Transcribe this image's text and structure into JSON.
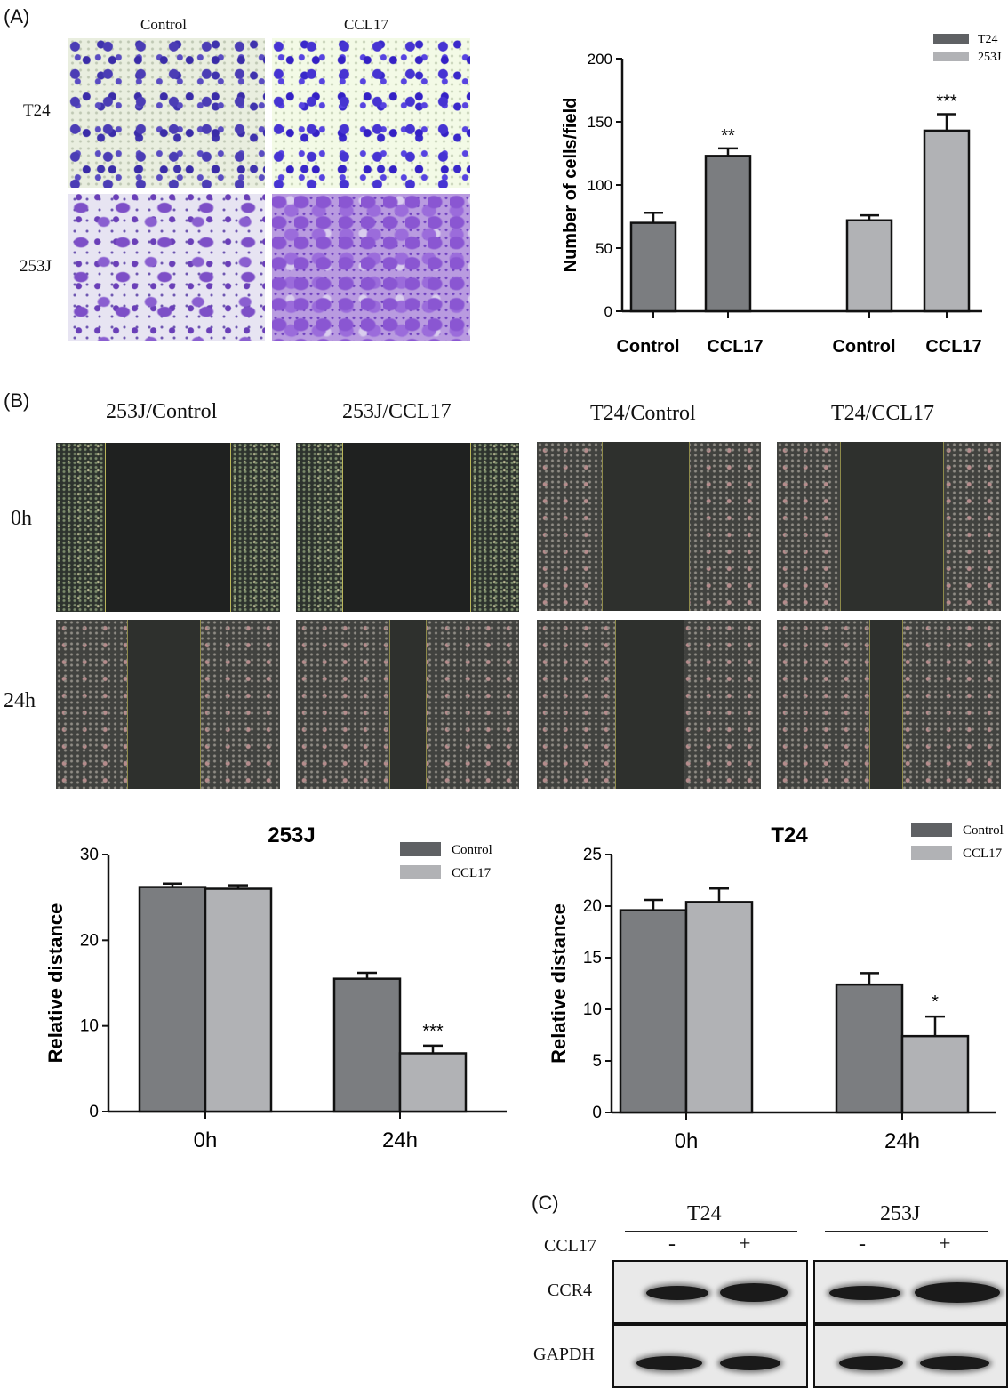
{
  "panel_labels": {
    "a": "(A)",
    "b": "(B)",
    "c": "(C)"
  },
  "panel_a": {
    "col_labels": [
      "Control",
      "CCL17"
    ],
    "row_labels": [
      "T24",
      "253J"
    ]
  },
  "panel_b": {
    "col_labels": [
      "253J/Control",
      "253J/CCL17",
      "T24/Control",
      "T24/CCL17"
    ],
    "row_labels": [
      "0h",
      "24h"
    ]
  },
  "panel_c": {
    "group_labels": [
      "T24",
      "253J"
    ],
    "treatment_label": "CCL17",
    "treatment_signs": [
      "-",
      "+",
      "-",
      "+"
    ],
    "row_labels": [
      "CCR4",
      "GAPDH"
    ]
  },
  "colors": {
    "series_dark": "#7b7d80",
    "series_light": "#b1b2b5",
    "legend_dark": "#5f6164"
  },
  "chart_data": [
    {
      "id": "transwell",
      "type": "bar",
      "title": "",
      "ylabel": "Number of cells/field",
      "ylim": [
        0,
        200
      ],
      "yticks": [
        0,
        50,
        100,
        150,
        200
      ],
      "categories": [
        "Control",
        "CCL17",
        "Control",
        "CCL17"
      ],
      "groups": [
        "T24",
        "T24",
        "253J",
        "253J"
      ],
      "values": [
        70,
        123,
        72,
        143
      ],
      "errors": [
        8,
        6,
        4,
        13
      ],
      "significance": [
        "",
        "**",
        "",
        "***"
      ],
      "legend": [
        "T24",
        "253J"
      ],
      "legend_position": "top-right",
      "grid": false
    },
    {
      "id": "migration-253j",
      "type": "bar",
      "title": "253J",
      "ylabel": "Relative distance",
      "ylim": [
        0,
        30
      ],
      "yticks": [
        0,
        10,
        20,
        30
      ],
      "categories": [
        "0h",
        "24h"
      ],
      "series": [
        {
          "name": "Control",
          "values": [
            26.2,
            15.5
          ],
          "errors": [
            0.4,
            0.7
          ]
        },
        {
          "name": "CCL17",
          "values": [
            26.0,
            6.8
          ],
          "errors": [
            0.4,
            0.9
          ]
        }
      ],
      "significance": [
        [
          "",
          ""
        ],
        [
          "",
          "***"
        ]
      ],
      "legend_position": "top-right",
      "grid": false
    },
    {
      "id": "migration-t24",
      "type": "bar",
      "title": "T24",
      "ylabel": "Relative distance",
      "ylim": [
        0,
        25
      ],
      "yticks": [
        0,
        5,
        10,
        15,
        20,
        25
      ],
      "categories": [
        "0h",
        "24h"
      ],
      "series": [
        {
          "name": "Control",
          "values": [
            19.6,
            12.4
          ],
          "errors": [
            1.0,
            1.1
          ]
        },
        {
          "name": "CCL17",
          "values": [
            20.4,
            7.4
          ],
          "errors": [
            1.3,
            1.9
          ]
        }
      ],
      "significance": [
        [
          "",
          ""
        ],
        [
          "",
          "*"
        ]
      ],
      "legend_position": "top-right",
      "grid": false
    }
  ]
}
